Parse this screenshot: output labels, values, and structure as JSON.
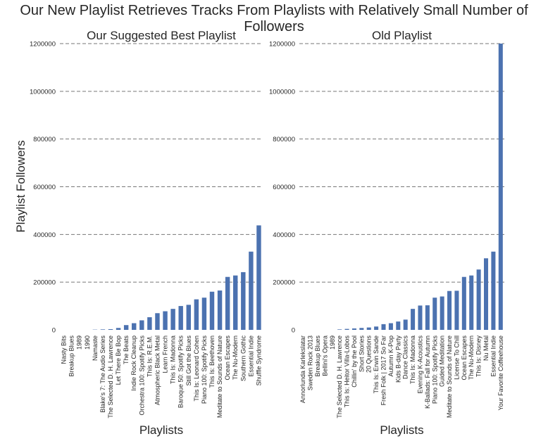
{
  "figure": {
    "title": "Our New Playlist Retrieves Tracks From Playlists with Relatively Small Number of Followers",
    "ylabel": "Playlist Followers",
    "bar_color": "#4c72b0",
    "grid_color": "#777777"
  },
  "chart_data": [
    {
      "type": "bar",
      "title": "Our Suggested Best Playlist",
      "xlabel": "Playlists",
      "ylabel": "Playlist Followers",
      "ylim": [
        0,
        1200000
      ],
      "yticks": [
        0,
        200000,
        400000,
        600000,
        800000,
        1000000,
        1200000
      ],
      "grid": "horizontal dashed",
      "categories": [
        "Nasty Bits",
        "Breakup Blues",
        "1989",
        "1990",
        "Namaste",
        "Blake's 7: The Audio Series",
        "The Selected D. H. Lawrence",
        "Let There Be Bop",
        "The Beats",
        "Indie Rock Cleanup",
        "Orchestra 100: Spotify Picks",
        "This Is: R.E.M.",
        "Atmospheric Black Metal",
        "Learn French",
        "This Is: Madonna",
        "Baroque 50: Spotify Picks",
        "Still Got the Blues",
        "This Is: Leonard Cohen",
        "Piano 100: Spotify Picks",
        "This Is: Beethoven",
        "Meditate to Sounds of Nature",
        "Ocean Escapes",
        "The Nu-Modern",
        "Southern Gothic",
        "Essential Indie",
        "Shuffle Syndrome"
      ],
      "values": [
        0,
        0,
        0,
        0,
        1000,
        2000,
        3000,
        8000,
        20000,
        28000,
        40000,
        53000,
        70000,
        78000,
        88000,
        100000,
        105000,
        128000,
        135000,
        160000,
        165000,
        222000,
        228000,
        242000,
        328000,
        438000
      ]
    },
    {
      "type": "bar",
      "title": "Old Playlist",
      "xlabel": "Playlists",
      "ylabel": "",
      "ylim": [
        0,
        1200000
      ],
      "yticks": [
        0,
        200000,
        400000,
        600000,
        800000,
        1000000,
        1200000
      ],
      "grid": "horizontal dashed",
      "categories": [
        "Annorlunda Karlekslatar",
        "Sweden Rock 2013",
        "Breakup Blues",
        "Bellini's Opera",
        "1989",
        "The Selected D. H. Lawrence",
        "This Is: Heitor Villa-Lobos",
        "Chillin' by the Pool",
        "Short Stories",
        "20 Questions",
        "This Is: Erwin Sande",
        "Fresh Folk | 2017 So Far",
        "Autumn K-Pop",
        "Kids B-day Party",
        "Dance Classics",
        "This Is: Madonna",
        "Evening K-Acoustics",
        "K-Ballads: Fall for Autumn",
        "Piano 100: Spotify Picks",
        "Guided Meditation",
        "Meditate to Sounds of Nature",
        "License To Chill",
        "Ocean Escapes",
        "The Nu-Modern",
        "This Is: Disney",
        "Nu Metal",
        "Essential Indie",
        "Your Favorite Coffeehouse"
      ],
      "values": [
        0,
        0,
        0,
        0,
        0,
        2000,
        4000,
        6000,
        8000,
        10000,
        14000,
        24000,
        28000,
        35000,
        43000,
        88000,
        102000,
        103000,
        135000,
        140000,
        163000,
        164000,
        222000,
        228000,
        253000,
        300000,
        328000,
        1200000
      ]
    }
  ]
}
